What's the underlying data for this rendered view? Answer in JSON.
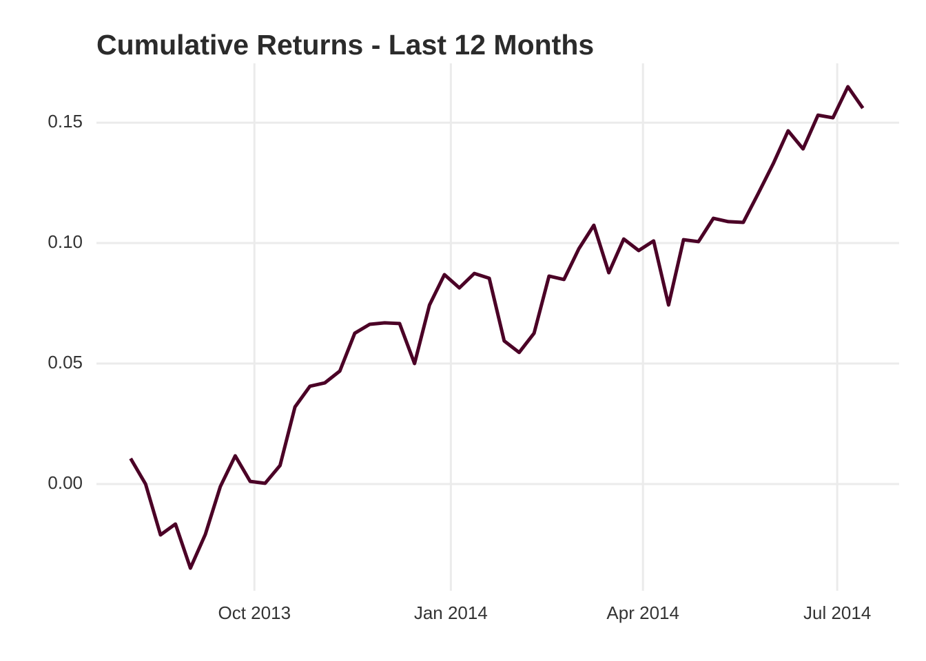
{
  "chart_data": {
    "type": "line",
    "title": "Cumulative Returns - Last 12 Months",
    "x": [
      "2013-08-04",
      "2013-08-11",
      "2013-08-18",
      "2013-08-25",
      "2013-09-01",
      "2013-09-08",
      "2013-09-15",
      "2013-09-22",
      "2013-09-29",
      "2013-10-06",
      "2013-10-13",
      "2013-10-20",
      "2013-10-27",
      "2013-11-03",
      "2013-11-10",
      "2013-11-17",
      "2013-11-24",
      "2013-12-01",
      "2013-12-08",
      "2013-12-15",
      "2013-12-22",
      "2013-12-29",
      "2014-01-05",
      "2014-01-12",
      "2014-01-19",
      "2014-01-26",
      "2014-02-02",
      "2014-02-09",
      "2014-02-16",
      "2014-02-23",
      "2014-03-02",
      "2014-03-09",
      "2014-03-16",
      "2014-03-23",
      "2014-03-30",
      "2014-04-06",
      "2014-04-13",
      "2014-04-20",
      "2014-04-27",
      "2014-05-04",
      "2014-05-11",
      "2014-05-18",
      "2014-05-25",
      "2014-06-01",
      "2014-06-08",
      "2014-06-15",
      "2014-06-22",
      "2014-06-29",
      "2014-07-06",
      "2014-07-13"
    ],
    "series": [
      {
        "name": "Cumulative Returns",
        "color": "#4b0026",
        "values": [
          0.0106,
          0.0,
          -0.0211,
          -0.0166,
          -0.0349,
          -0.0209,
          -0.0011,
          0.0117,
          0.0011,
          0.0003,
          0.0077,
          0.032,
          0.0406,
          0.042,
          0.0469,
          0.0626,
          0.0663,
          0.0669,
          0.0666,
          0.05,
          0.0743,
          0.0869,
          0.0814,
          0.0874,
          0.0854,
          0.0594,
          0.0546,
          0.0626,
          0.0863,
          0.0849,
          0.0977,
          0.1074,
          0.0877,
          0.1017,
          0.0969,
          0.1009,
          0.0743,
          0.1014,
          0.1006,
          0.1103,
          0.1089,
          0.1086,
          0.1206,
          0.1329,
          0.1466,
          0.1391,
          0.1531,
          0.152,
          0.1649,
          0.156
        ]
      }
    ],
    "xlim": [
      "2013-07-19",
      "2014-07-30"
    ],
    "xticks": [
      {
        "value": "2013-10-01",
        "label": "Oct 2013"
      },
      {
        "value": "2014-01-01",
        "label": "Jan 2014"
      },
      {
        "value": "2014-04-01",
        "label": "Apr 2014"
      },
      {
        "value": "2014-07-01",
        "label": "Jul 2014"
      }
    ],
    "ylim": [
      -0.0443,
      0.1746
    ],
    "yticks": [
      {
        "value": 0,
        "label": "0.00"
      },
      {
        "value": 0.05,
        "label": "0.05"
      },
      {
        "value": 0.1,
        "label": "0.10"
      },
      {
        "value": 0.15,
        "label": "0.15"
      }
    ],
    "grid": true
  }
}
